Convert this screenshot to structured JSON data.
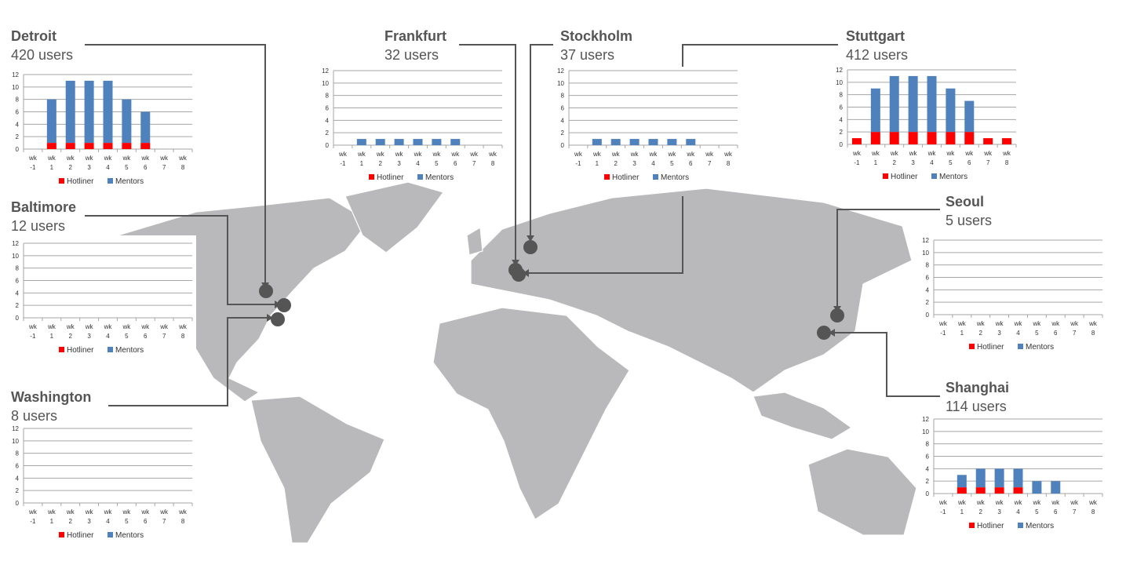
{
  "colors": {
    "hotliner": "#ff0000",
    "mentors": "#4f81bd",
    "map": "#b9b9bb",
    "connector": "#555555",
    "grid": "#a6a6a6"
  },
  "chart_data": [
    {
      "id": "detroit",
      "type": "bar",
      "stacked": true,
      "city": "Detroit",
      "users": "420 users",
      "categories_top": [
        "wk",
        "wk",
        "wk",
        "wk",
        "wk",
        "wk",
        "wk",
        "wk",
        "wk"
      ],
      "categories": [
        "-1",
        "1",
        "2",
        "3",
        "4",
        "5",
        "6",
        "7",
        "8"
      ],
      "ylim": [
        0,
        12
      ],
      "yticks": [
        "0",
        "2",
        "4",
        "6",
        "8",
        "10",
        "12"
      ],
      "grid": true,
      "legend": "bottom",
      "series": [
        {
          "name": "Hotliner",
          "values": [
            0,
            1,
            1,
            1,
            1,
            1,
            1,
            0,
            0
          ]
        },
        {
          "name": "Mentors",
          "values": [
            0,
            7,
            10,
            10,
            10,
            7,
            5,
            0,
            0
          ]
        }
      ]
    },
    {
      "id": "frankfurt",
      "type": "bar",
      "stacked": true,
      "city": "Frankfurt",
      "users": "32 users",
      "categories_top": [
        "wk",
        "wk",
        "wk",
        "wk",
        "wk",
        "wk",
        "wk",
        "wk",
        "wk"
      ],
      "categories": [
        "-1",
        "1",
        "2",
        "3",
        "4",
        "5",
        "6",
        "7",
        "8"
      ],
      "ylim": [
        0,
        12
      ],
      "yticks": [
        "0",
        "2",
        "4",
        "6",
        "8",
        "10",
        "12"
      ],
      "grid": true,
      "legend": "bottom",
      "series": [
        {
          "name": "Hotliner",
          "values": [
            0,
            0,
            0,
            0,
            0,
            0,
            0,
            0,
            0
          ]
        },
        {
          "name": "Mentors",
          "values": [
            0,
            1,
            1,
            1,
            1,
            1,
            1,
            0,
            0
          ]
        }
      ]
    },
    {
      "id": "stockholm",
      "type": "bar",
      "stacked": true,
      "city": "Stockholm",
      "users": "37 users",
      "categories_top": [
        "wk",
        "wk",
        "wk",
        "wk",
        "wk",
        "wk",
        "wk",
        "wk",
        "wk"
      ],
      "categories": [
        "-1",
        "1",
        "2",
        "3",
        "4",
        "5",
        "6",
        "7",
        "8"
      ],
      "ylim": [
        0,
        12
      ],
      "yticks": [
        "0",
        "2",
        "4",
        "6",
        "8",
        "10",
        "12"
      ],
      "grid": true,
      "legend": "bottom",
      "series": [
        {
          "name": "Hotliner",
          "values": [
            0,
            0,
            0,
            0,
            0,
            0,
            0,
            0,
            0
          ]
        },
        {
          "name": "Mentors",
          "values": [
            0,
            1,
            1,
            1,
            1,
            1,
            1,
            0,
            0
          ]
        }
      ]
    },
    {
      "id": "stuttgart",
      "type": "bar",
      "stacked": true,
      "city": "Stuttgart",
      "users": "412 users",
      "categories_top": [
        "wk",
        "wk",
        "wk",
        "wk",
        "wk",
        "wk",
        "wk",
        "wk",
        "wk"
      ],
      "categories": [
        "-1",
        "1",
        "2",
        "3",
        "4",
        "5",
        "6",
        "7",
        "8"
      ],
      "ylim": [
        0,
        12
      ],
      "yticks": [
        "0",
        "2",
        "4",
        "6",
        "8",
        "10",
        "12"
      ],
      "grid": true,
      "legend": "bottom",
      "series": [
        {
          "name": "Hotliner",
          "values": [
            1,
            2,
            2,
            2,
            2,
            2,
            2,
            1,
            1
          ]
        },
        {
          "name": "Mentors",
          "values": [
            0,
            7,
            9,
            9,
            9,
            7,
            5,
            0,
            0
          ]
        }
      ]
    },
    {
      "id": "baltimore",
      "type": "bar",
      "stacked": true,
      "city": "Baltimore",
      "users": "12 users",
      "categories_top": [
        "wk",
        "wk",
        "wk",
        "wk",
        "wk",
        "wk",
        "wk",
        "wk",
        "wk"
      ],
      "categories": [
        "-1",
        "1",
        "2",
        "3",
        "4",
        "5",
        "6",
        "7",
        "8"
      ],
      "ylim": [
        0,
        12
      ],
      "yticks": [
        "0",
        "2",
        "4",
        "6",
        "8",
        "10",
        "12"
      ],
      "grid": true,
      "legend": "bottom",
      "series": [
        {
          "name": "Hotliner",
          "values": [
            0,
            0,
            0,
            0,
            0,
            0,
            0,
            0,
            0
          ]
        },
        {
          "name": "Mentors",
          "values": [
            0,
            0,
            0,
            0,
            0,
            0,
            0,
            0,
            0
          ]
        }
      ]
    },
    {
      "id": "seoul",
      "type": "bar",
      "stacked": true,
      "city": "Seoul",
      "users": "5 users",
      "categories_top": [
        "wk",
        "wk",
        "wk",
        "wk",
        "wk",
        "wk",
        "wk",
        "wk",
        "wk"
      ],
      "categories": [
        "-1",
        "1",
        "2",
        "3",
        "4",
        "5",
        "6",
        "7",
        "8"
      ],
      "ylim": [
        0,
        12
      ],
      "yticks": [
        "0",
        "2",
        "4",
        "6",
        "8",
        "10",
        "12"
      ],
      "grid": true,
      "legend": "bottom",
      "series": [
        {
          "name": "Hotliner",
          "values": [
            0,
            0,
            0,
            0,
            0,
            0,
            0,
            0,
            0
          ]
        },
        {
          "name": "Mentors",
          "values": [
            0,
            0,
            0,
            0,
            0,
            0,
            0,
            0,
            0
          ]
        }
      ]
    },
    {
      "id": "washington",
      "type": "bar",
      "stacked": true,
      "city": "Washington",
      "users": "8 users",
      "categories_top": [
        "wk",
        "wk",
        "wk",
        "wk",
        "wk",
        "wk",
        "wk",
        "wk",
        "wk"
      ],
      "categories": [
        "-1",
        "1",
        "2",
        "3",
        "4",
        "5",
        "6",
        "7",
        "8"
      ],
      "ylim": [
        0,
        12
      ],
      "yticks": [
        "0",
        "2",
        "4",
        "6",
        "8",
        "10",
        "12"
      ],
      "grid": true,
      "legend": "bottom",
      "series": [
        {
          "name": "Hotliner",
          "values": [
            0,
            0,
            0,
            0,
            0,
            0,
            0,
            0,
            0
          ]
        },
        {
          "name": "Mentors",
          "values": [
            0,
            0,
            0,
            0,
            0,
            0,
            0,
            0,
            0
          ]
        }
      ]
    },
    {
      "id": "shanghai",
      "type": "bar",
      "stacked": true,
      "city": "Shanghai",
      "users": "114 users",
      "categories_top": [
        "wk",
        "wk",
        "wk",
        "wk",
        "wk",
        "wk",
        "wk",
        "wk",
        "wk"
      ],
      "categories": [
        "-1",
        "1",
        "2",
        "3",
        "4",
        "5",
        "6",
        "7",
        "8"
      ],
      "ylim": [
        0,
        12
      ],
      "yticks": [
        "0",
        "2",
        "4",
        "6",
        "8",
        "10",
        "12"
      ],
      "grid": true,
      "legend": "bottom",
      "series": [
        {
          "name": "Hotliner",
          "values": [
            0,
            1,
            1,
            1,
            1,
            0,
            0,
            0,
            0
          ]
        },
        {
          "name": "Mentors",
          "values": [
            0,
            2,
            3,
            3,
            3,
            2,
            2,
            0,
            0
          ]
        }
      ]
    }
  ]
}
